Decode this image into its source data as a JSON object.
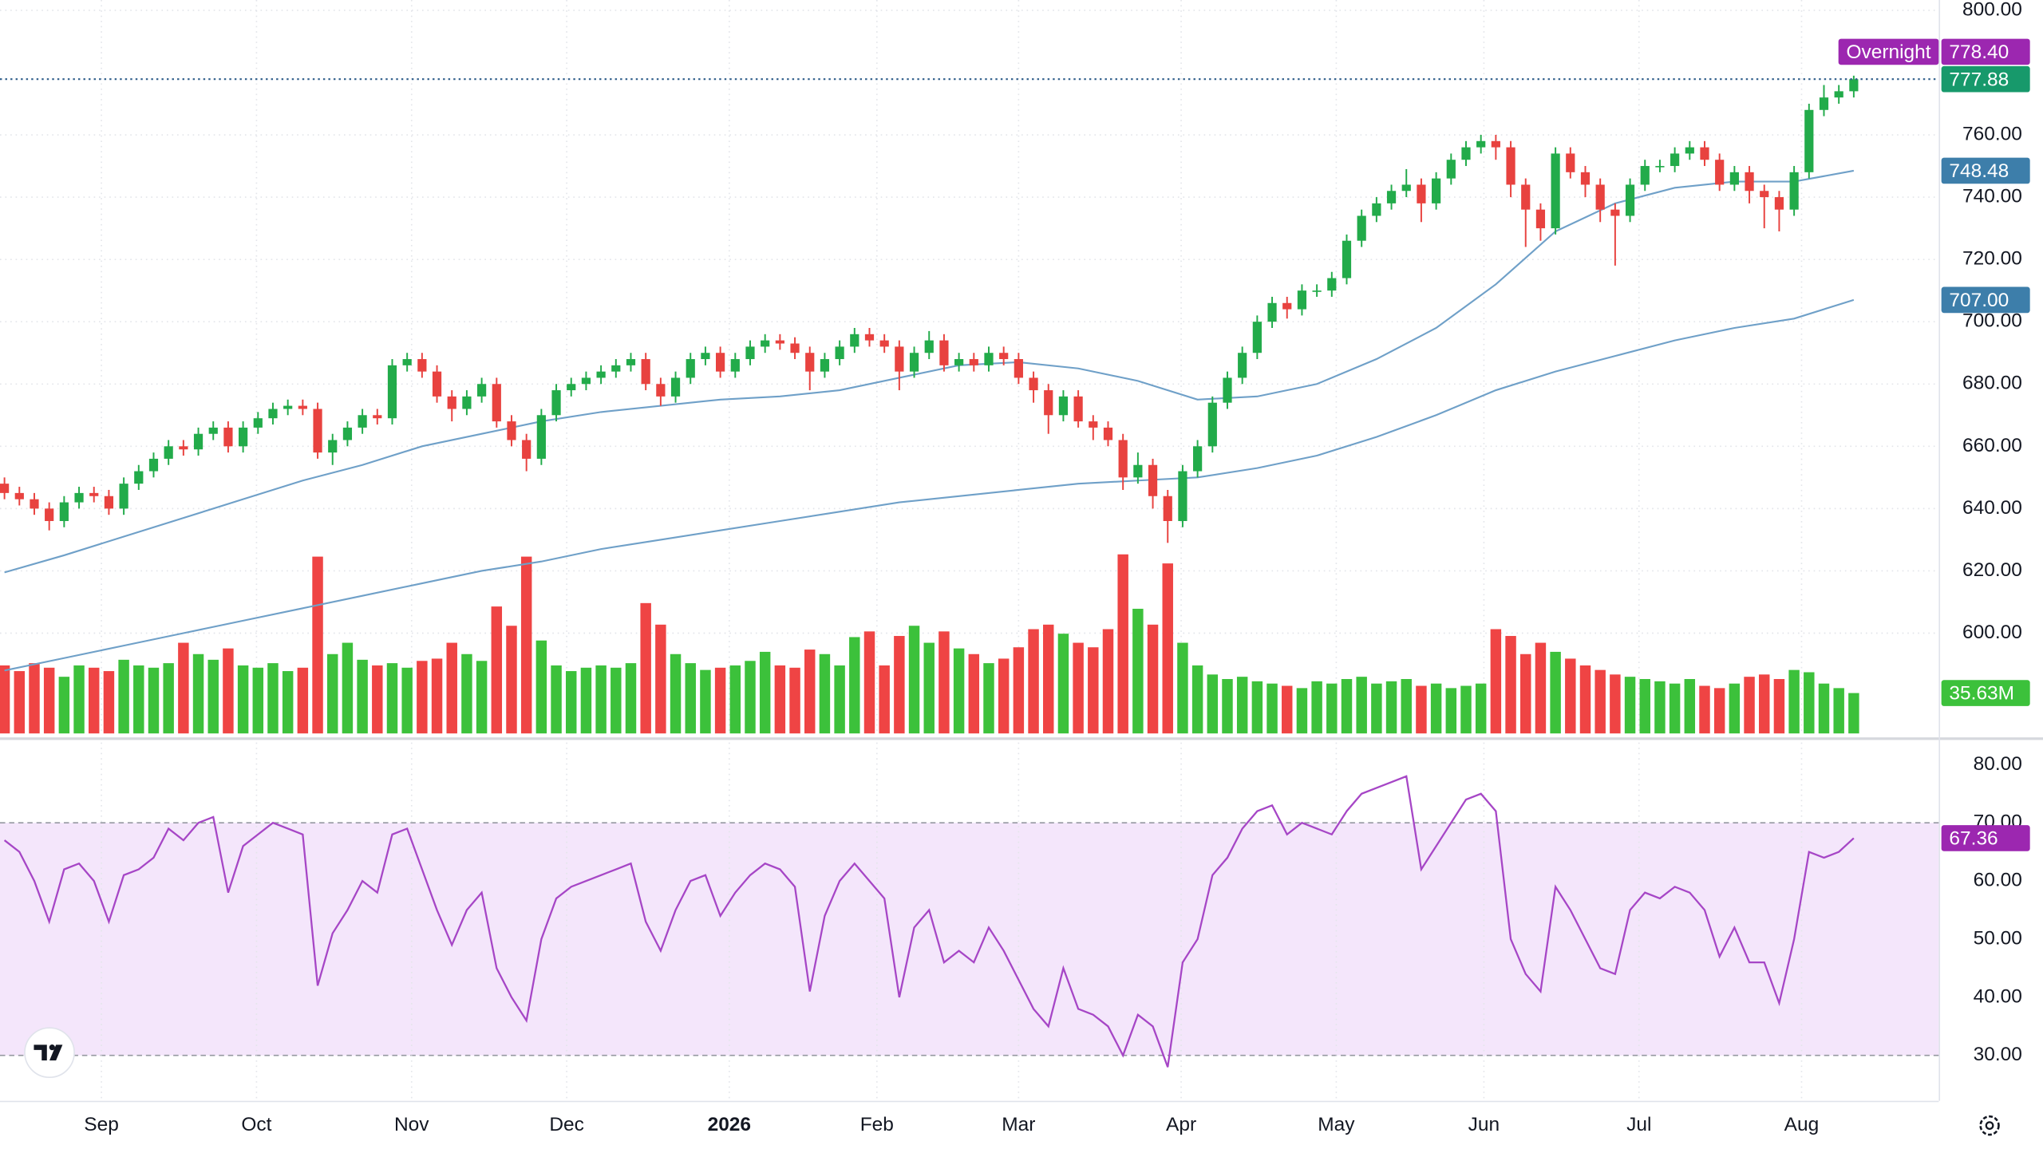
{
  "chart_data": {
    "type": "candlestick",
    "up_color": "#22ab4a",
    "down_color": "#e8423f",
    "open": [
      648,
      645,
      643,
      640,
      636,
      642,
      645,
      644,
      640,
      648,
      652,
      656,
      660,
      659,
      664,
      666,
      660,
      666,
      669,
      672,
      673,
      672,
      658,
      662,
      666,
      670,
      669,
      686,
      688,
      684,
      676,
      672,
      676,
      680,
      668,
      662,
      656,
      670,
      678,
      680,
      682,
      684,
      686,
      688,
      680,
      676,
      682,
      688,
      690,
      684,
      688,
      692,
      694,
      693,
      690,
      684,
      688,
      692,
      696,
      694,
      692,
      684,
      690,
      694,
      686,
      688,
      686,
      690,
      688,
      682,
      678,
      670,
      676,
      668,
      666,
      662,
      650,
      654,
      644,
      636,
      652,
      660,
      674,
      682,
      690,
      700,
      706,
      704,
      710,
      710,
      714,
      726,
      734,
      738,
      742,
      744,
      738,
      746,
      752,
      756,
      758,
      756,
      744,
      736,
      730,
      754,
      748,
      744,
      736,
      734,
      744,
      750,
      750,
      754,
      756,
      752,
      744,
      748,
      742,
      740,
      736,
      748,
      768,
      772,
      774
    ],
    "high": [
      650,
      647,
      645,
      642,
      644,
      647,
      647,
      646,
      650,
      654,
      658,
      662,
      662,
      666,
      668,
      668,
      668,
      671,
      674,
      675,
      675,
      674,
      664,
      668,
      672,
      672,
      688,
      690,
      690,
      686,
      678,
      678,
      682,
      682,
      670,
      664,
      672,
      680,
      682,
      684,
      686,
      688,
      690,
      690,
      682,
      684,
      690,
      692,
      692,
      690,
      694,
      696,
      696,
      695,
      692,
      690,
      694,
      698,
      698,
      696,
      694,
      692,
      697,
      696,
      690,
      690,
      692,
      692,
      690,
      684,
      680,
      678,
      678,
      670,
      668,
      664,
      658,
      656,
      646,
      654,
      662,
      676,
      684,
      692,
      702,
      708,
      708,
      712,
      712,
      716,
      728,
      736,
      740,
      744,
      749,
      746,
      748,
      754,
      758,
      760,
      760,
      758,
      746,
      738,
      756,
      756,
      750,
      746,
      738,
      746,
      752,
      752,
      756,
      758,
      758,
      754,
      750,
      750,
      744,
      742,
      750,
      770,
      776,
      776,
      779
    ],
    "low": [
      643,
      641,
      638,
      633,
      634,
      640,
      642,
      638,
      638,
      646,
      650,
      654,
      657,
      657,
      662,
      658,
      658,
      664,
      667,
      670,
      670,
      656,
      654,
      660,
      664,
      667,
      667,
      684,
      682,
      674,
      668,
      670,
      674,
      666,
      660,
      652,
      654,
      668,
      676,
      678,
      680,
      682,
      684,
      678,
      673,
      674,
      680,
      686,
      682,
      682,
      686,
      690,
      691,
      688,
      678,
      682,
      686,
      690,
      692,
      690,
      678,
      682,
      688,
      684,
      684,
      684,
      684,
      686,
      680,
      674,
      664,
      668,
      666,
      662,
      660,
      646,
      648,
      640,
      629,
      634,
      650,
      658,
      672,
      680,
      688,
      698,
      701,
      702,
      708,
      708,
      712,
      724,
      732,
      736,
      740,
      732,
      736,
      744,
      750,
      754,
      752,
      740,
      724,
      726,
      728,
      746,
      740,
      732,
      718,
      732,
      742,
      748,
      748,
      752,
      750,
      742,
      742,
      738,
      730,
      729,
      734,
      746,
      766,
      770,
      772
    ],
    "close": [
      645,
      643,
      640,
      636,
      642,
      645,
      644,
      640,
      648,
      652,
      656,
      660,
      659,
      664,
      666,
      660,
      666,
      669,
      672,
      673,
      672,
      658,
      662,
      666,
      670,
      669,
      686,
      688,
      684,
      676,
      672,
      676,
      680,
      668,
      662,
      656,
      670,
      678,
      680,
      682,
      684,
      686,
      688,
      680,
      676,
      682,
      688,
      690,
      684,
      688,
      692,
      694,
      693,
      690,
      684,
      688,
      692,
      696,
      694,
      692,
      684,
      690,
      694,
      686,
      688,
      686,
      690,
      688,
      682,
      678,
      670,
      676,
      668,
      666,
      662,
      650,
      654,
      644,
      636,
      652,
      660,
      674,
      682,
      690,
      700,
      706,
      704,
      710,
      710,
      714,
      726,
      734,
      738,
      742,
      744,
      738,
      746,
      752,
      756,
      758,
      756,
      744,
      736,
      730,
      754,
      748,
      744,
      736,
      734,
      744,
      750,
      750,
      754,
      756,
      752,
      744,
      748,
      742,
      740,
      736,
      748,
      768,
      772,
      774,
      777.88
    ],
    "last_price_color": "#17996b",
    "xlim": [
      -0.3,
      129.7
    ],
    "xticks": [
      {
        "value": 6.5,
        "label": "Sep"
      },
      {
        "value": 16.9,
        "label": "Oct"
      },
      {
        "value": 27.3,
        "label": "Nov"
      },
      {
        "value": 37.7,
        "label": "Dec"
      },
      {
        "value": 48.6,
        "label": "2026"
      },
      {
        "value": 58.5,
        "label": "Feb"
      },
      {
        "value": 68,
        "label": "Mar"
      },
      {
        "value": 78.9,
        "label": "Apr"
      },
      {
        "value": 89.3,
        "label": "May"
      },
      {
        "value": 99.2,
        "label": "Jun"
      },
      {
        "value": 109.6,
        "label": "Jul"
      },
      {
        "value": 120.5,
        "label": "Aug"
      }
    ],
    "ylim": [
      567.8,
      803.3
    ],
    "yticks": [
      {
        "value": 600,
        "label": "600.00"
      },
      {
        "value": 620,
        "label": "620.00"
      },
      {
        "value": 640,
        "label": "640.00"
      },
      {
        "value": 660,
        "label": "660.00"
      },
      {
        "value": 680,
        "label": "680.00"
      },
      {
        "value": 700,
        "label": "700.00"
      },
      {
        "value": 720,
        "label": "720.00"
      },
      {
        "value": 740,
        "label": "740.00"
      },
      {
        "value": 760,
        "label": "760.00"
      },
      {
        "value": 800,
        "label": "800.00"
      }
    ],
    "grid": true,
    "overnight": {
      "name": "Overnight",
      "value": 778.4,
      "value_label": "778.40",
      "color": "#9c27b0"
    },
    "volume": {
      "values": [
        60,
        55,
        62,
        58,
        50,
        60,
        58,
        55,
        65,
        60,
        58,
        62,
        80,
        70,
        65,
        75,
        60,
        58,
        62,
        55,
        58,
        156,
        70,
        80,
        65,
        60,
        62,
        58,
        64,
        66,
        80,
        70,
        64,
        112,
        95,
        156,
        82,
        60,
        55,
        58,
        60,
        58,
        62,
        115,
        96,
        70,
        62,
        56,
        58,
        60,
        64,
        72,
        60,
        58,
        74,
        70,
        60,
        85,
        90,
        60,
        86,
        95,
        80,
        90,
        75,
        70,
        62,
        66,
        76,
        92,
        96,
        88,
        80,
        76,
        92,
        158,
        110,
        96,
        150,
        80,
        60,
        52,
        48,
        50,
        46,
        44,
        42,
        40,
        46,
        44,
        48,
        50,
        44,
        46,
        48,
        42,
        44,
        40,
        42,
        44,
        92,
        86,
        70,
        80,
        72,
        66,
        60,
        56,
        52,
        50,
        48,
        46,
        44,
        48,
        42,
        40,
        44,
        50,
        52,
        48,
        56,
        54,
        44,
        40,
        35.63
      ],
      "ylim": [
        0,
        250
      ],
      "up_color": "#3cc13b",
      "down_color": "#ef4444",
      "last_label": "35.63M"
    },
    "moving_averages": [
      {
        "x": [
          0,
          4,
          8,
          12,
          16,
          20,
          24,
          28,
          32,
          36,
          40,
          44,
          48,
          52,
          56,
          60,
          64,
          68,
          72,
          76,
          80,
          84,
          88,
          92,
          96,
          100,
          104,
          108,
          112,
          116,
          120,
          124
        ],
        "values": [
          619.5,
          625,
          631,
          637,
          643,
          649,
          654,
          660,
          664,
          668,
          671,
          673,
          675,
          676,
          678,
          682,
          686,
          687,
          685,
          681,
          675,
          676,
          680,
          688,
          698,
          712,
          729,
          738,
          743,
          745,
          745,
          748.48
        ],
        "color": "#6fa0c8",
        "label_color": "#3d7eaa"
      },
      {
        "x": [
          0,
          4,
          8,
          12,
          16,
          20,
          24,
          28,
          32,
          36,
          40,
          44,
          48,
          52,
          56,
          60,
          64,
          68,
          72,
          76,
          80,
          84,
          88,
          92,
          96,
          100,
          104,
          108,
          112,
          116,
          120,
          124
        ],
        "values": [
          588,
          592,
          596,
          600,
          604,
          608,
          612,
          616,
          620,
          623,
          627,
          630,
          633,
          636,
          639,
          642,
          644,
          646,
          648,
          649,
          650,
          653,
          657,
          663,
          670,
          678,
          684,
          689,
          694,
          698,
          701,
          707
        ],
        "last_label": "707.00",
        "color": "#6fa0c8",
        "label_color": "#3d7eaa"
      }
    ],
    "rsi": {
      "type": "line",
      "values": [
        67,
        65,
        60,
        53,
        62,
        63,
        60,
        53,
        61,
        62,
        64,
        69,
        67,
        70,
        71,
        58,
        66,
        68,
        70,
        69,
        68,
        42,
        51,
        55,
        60,
        58,
        68,
        69,
        62,
        55,
        49,
        55,
        58,
        45,
        40,
        36,
        50,
        57,
        59,
        60,
        61,
        62,
        63,
        53,
        48,
        55,
        60,
        61,
        54,
        58,
        61,
        63,
        62,
        59,
        41,
        54,
        60,
        63,
        60,
        57,
        40,
        52,
        55,
        46,
        48,
        46,
        52,
        48,
        43,
        38,
        35,
        45,
        38,
        37,
        35,
        30,
        37,
        35,
        28,
        46,
        50,
        61,
        64,
        69,
        72,
        73,
        68,
        70,
        69,
        68,
        72,
        75,
        76,
        77,
        78,
        62,
        66,
        70,
        74,
        75,
        72,
        50,
        44,
        41,
        59,
        55,
        50,
        45,
        44,
        55,
        58,
        57,
        59,
        58,
        55,
        47,
        52,
        46,
        46,
        39,
        50,
        65,
        64,
        65,
        67.36
      ],
      "color": "#a646c6",
      "ylim": [
        22.2,
        83.8
      ],
      "yticks": [
        {
          "value": 30,
          "label": "30.00"
        },
        {
          "value": 40,
          "label": "40.00"
        },
        {
          "value": 50,
          "label": "50.00"
        },
        {
          "value": 60,
          "label": "60.00"
        },
        {
          "value": 70,
          "label": "70.00"
        },
        {
          "value": 80,
          "label": "80.00"
        }
      ],
      "band": [
        30,
        70
      ],
      "band_color": "#f4e6fb"
    }
  }
}
